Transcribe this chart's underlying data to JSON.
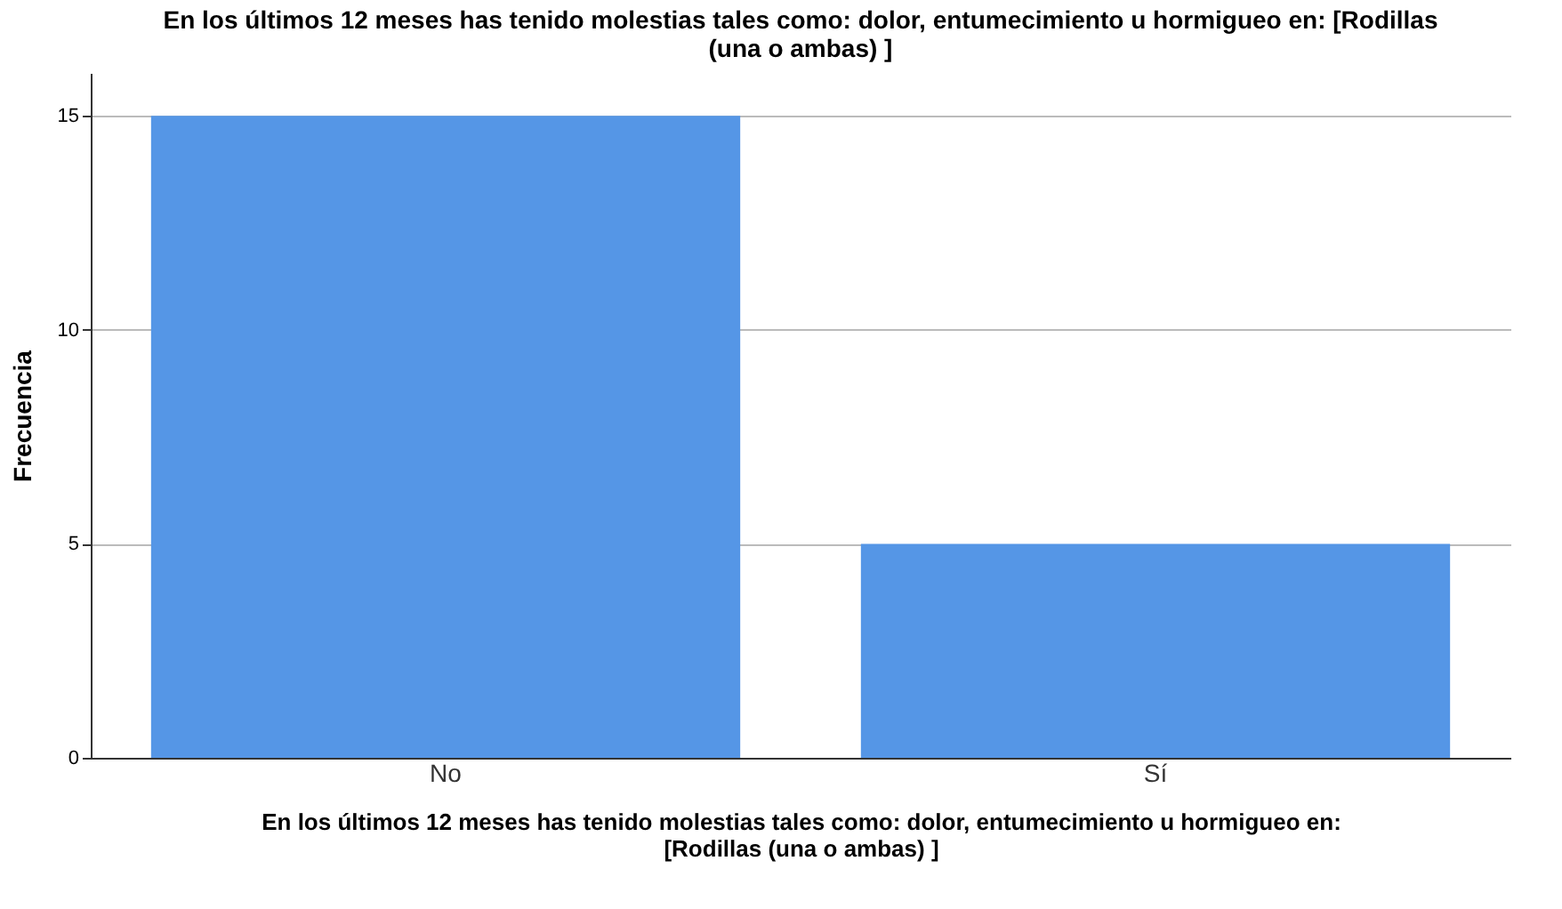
{
  "chart_data": {
    "type": "bar",
    "title": "En los últimos 12 meses has tenido molestias tales como: dolor, entumecimiento u hormigueo en:  [Rodillas (una o ambas) ]",
    "xlabel": "En los últimos 12 meses has tenido molestias tales como: dolor, entumecimiento u hormigueo en: [Rodillas (una o ambas) ]",
    "ylabel": "Frecuencia",
    "categories": [
      "No",
      "Sí"
    ],
    "series": [
      {
        "color": "#5596e6",
        "values": [
          15,
          5
        ]
      }
    ],
    "ylim": [
      0,
      16
    ],
    "yticks": [
      0,
      5,
      10,
      15
    ],
    "grid": "y"
  }
}
